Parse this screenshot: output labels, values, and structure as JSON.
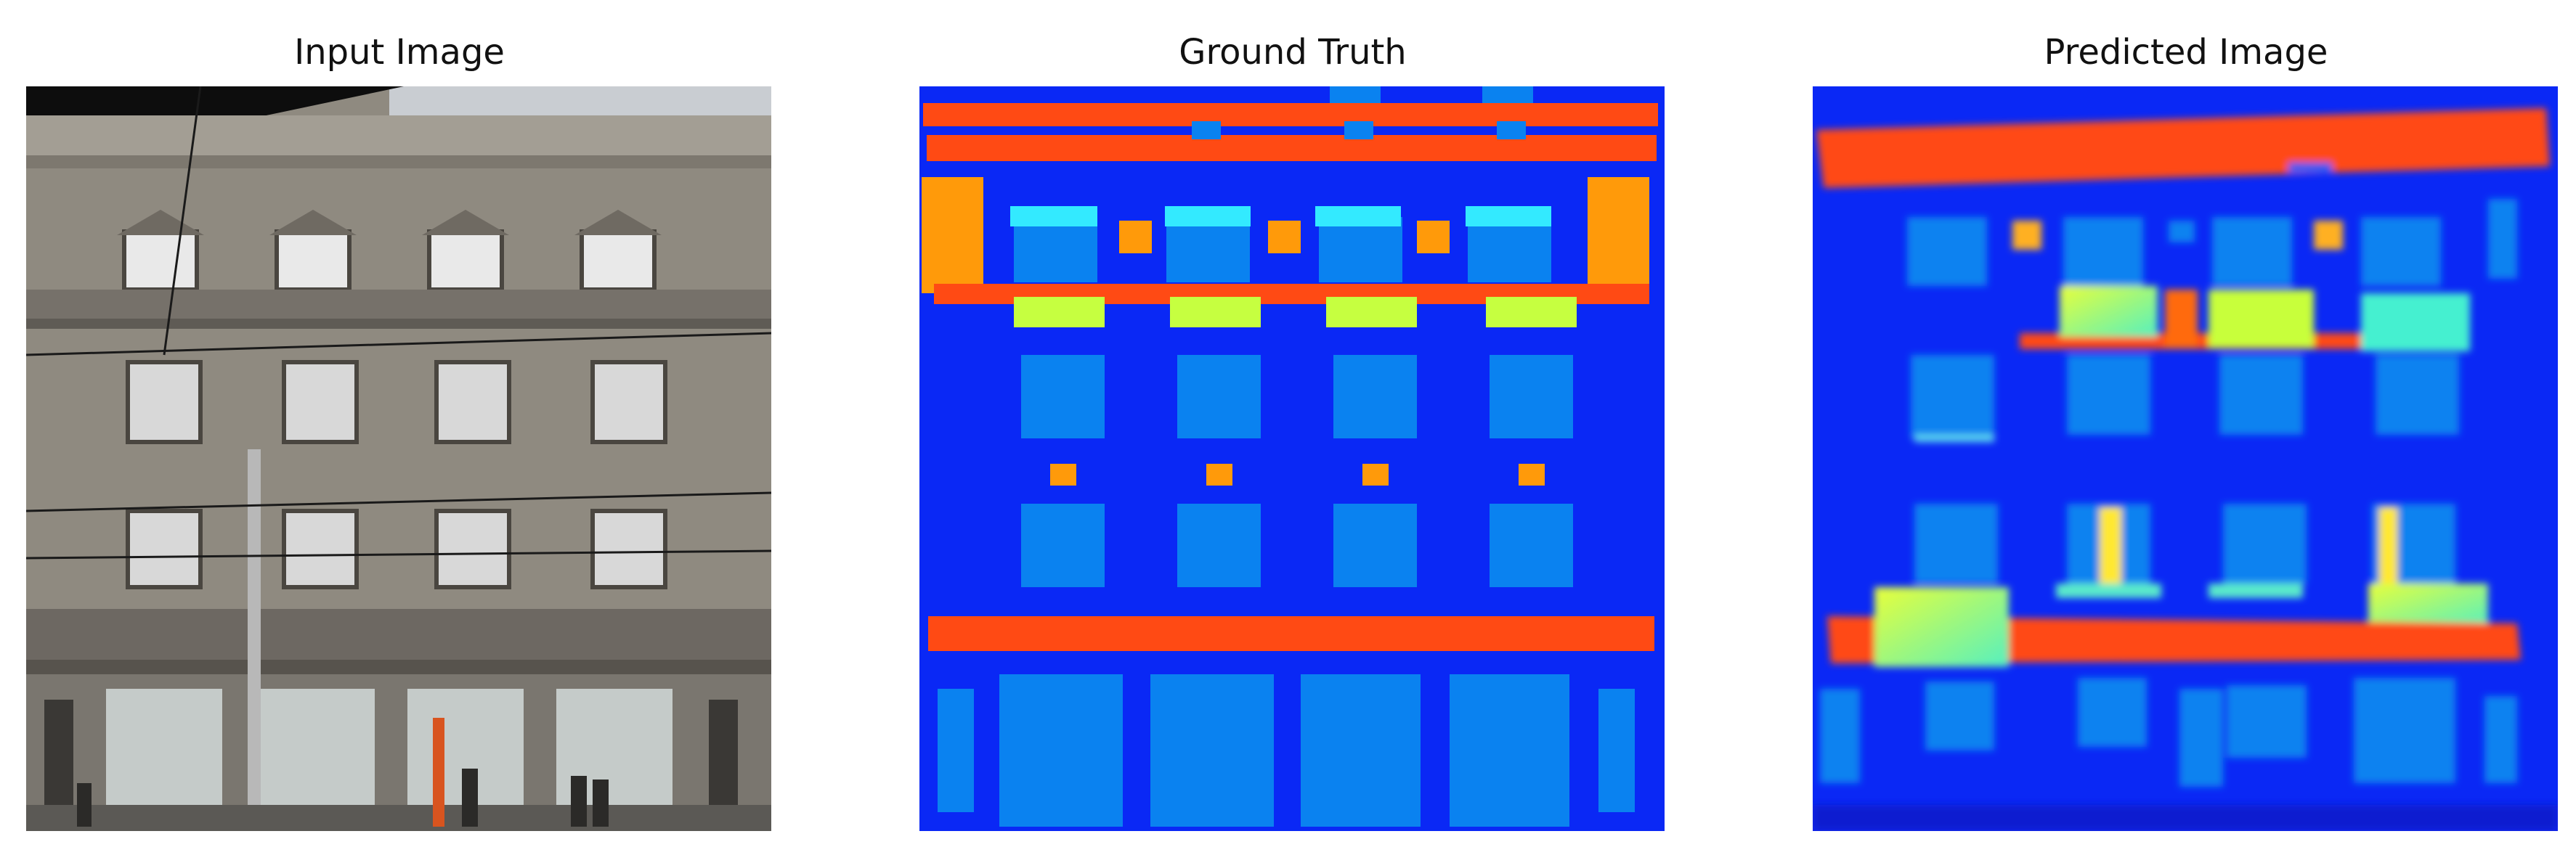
{
  "panels": [
    {
      "title": "Input Image"
    },
    {
      "title": "Ground Truth"
    },
    {
      "title": "Predicted Image"
    }
  ],
  "colors": {
    "background_label": "#0a28f5",
    "window_label": "#0a82f0",
    "cornice_label": "#ff4a14",
    "pillar_label": "#ff9a0a",
    "balcony_label": "#c6ff40",
    "sill_label": "#33eaff"
  }
}
